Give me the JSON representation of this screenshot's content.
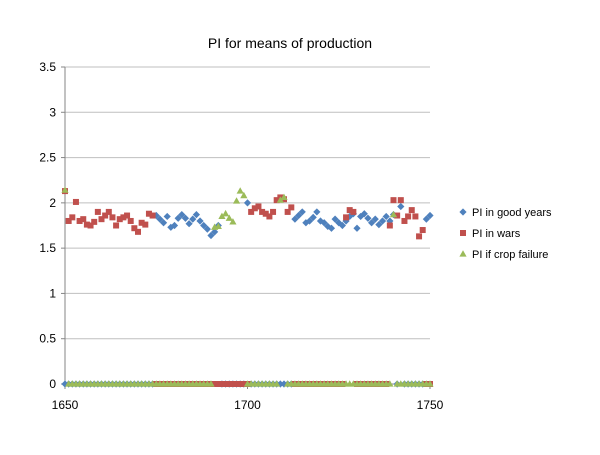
{
  "chart_data": {
    "type": "scatter",
    "title": "PI for means of production",
    "xlabel": "",
    "ylabel": "",
    "xlim": [
      1650,
      1750
    ],
    "ylim": [
      0,
      3.5
    ],
    "x_ticks": [
      "1650",
      "1700",
      "1750"
    ],
    "y_ticks": [
      "0",
      "0.5",
      "1",
      "1.5",
      "2",
      "2.5",
      "3",
      "3.5"
    ],
    "grid": "horizontal",
    "legend_position": "right",
    "series": [
      {
        "name": "PI in good years",
        "color": "#4F81BD",
        "marker": "diamond",
        "x": [
          1650,
          1651,
          1652,
          1653,
          1654,
          1655,
          1656,
          1657,
          1658,
          1659,
          1660,
          1661,
          1662,
          1663,
          1664,
          1665,
          1666,
          1667,
          1668,
          1669,
          1670,
          1671,
          1672,
          1673,
          1674,
          1675,
          1676,
          1677,
          1678,
          1679,
          1680,
          1681,
          1682,
          1683,
          1684,
          1685,
          1686,
          1687,
          1688,
          1689,
          1690,
          1691,
          1692,
          1693,
          1694,
          1695,
          1696,
          1697,
          1698,
          1699,
          1700,
          1701,
          1702,
          1703,
          1704,
          1705,
          1706,
          1707,
          1708,
          1709,
          1710,
          1711,
          1712,
          1713,
          1714,
          1715,
          1716,
          1717,
          1718,
          1719,
          1720,
          1721,
          1722,
          1723,
          1724,
          1725,
          1726,
          1727,
          1728,
          1729,
          1730,
          1731,
          1732,
          1733,
          1734,
          1735,
          1736,
          1737,
          1738,
          1739,
          1740,
          1741,
          1742,
          1743,
          1744,
          1745,
          1746,
          1747,
          1748,
          1749,
          1750
        ],
        "y": [
          0,
          0,
          0,
          0,
          0,
          0,
          0,
          0,
          0,
          0,
          0,
          0,
          0,
          0,
          0,
          0,
          0,
          0,
          0,
          0,
          0,
          0,
          0,
          0,
          0,
          1.86,
          1.82,
          1.78,
          1.85,
          1.73,
          1.75,
          1.83,
          1.87,
          1.83,
          1.77,
          1.82,
          1.87,
          1.8,
          1.75,
          1.71,
          1.64,
          1.68,
          1.75,
          0,
          0,
          0,
          0,
          0,
          0,
          0,
          2.0,
          0,
          0,
          0,
          0,
          0,
          0,
          0,
          0,
          0,
          0,
          0,
          0,
          1.82,
          1.86,
          1.9,
          1.78,
          1.8,
          1.84,
          1.9,
          1.8,
          1.78,
          1.74,
          1.72,
          1.82,
          1.78,
          1.75,
          1.8,
          1.85,
          1.88,
          1.72,
          1.85,
          1.88,
          1.83,
          1.78,
          1.82,
          1.76,
          1.8,
          1.85,
          1.8,
          1.87,
          0,
          1.96,
          0,
          0,
          0,
          0,
          0,
          0,
          1.82,
          1.86
        ]
      },
      {
        "name": "PI in wars",
        "color": "#C0504D",
        "marker": "square",
        "x": [
          1650,
          1651,
          1652,
          1653,
          1654,
          1655,
          1656,
          1657,
          1658,
          1659,
          1660,
          1661,
          1662,
          1663,
          1664,
          1665,
          1666,
          1667,
          1668,
          1669,
          1670,
          1671,
          1672,
          1673,
          1674,
          1675,
          1676,
          1677,
          1678,
          1679,
          1680,
          1681,
          1682,
          1683,
          1684,
          1685,
          1686,
          1687,
          1688,
          1689,
          1690,
          1691,
          1692,
          1693,
          1694,
          1695,
          1696,
          1697,
          1698,
          1699,
          1700,
          1701,
          1702,
          1703,
          1704,
          1705,
          1706,
          1707,
          1708,
          1709,
          1710,
          1711,
          1712,
          1713,
          1714,
          1715,
          1716,
          1717,
          1718,
          1719,
          1720,
          1721,
          1722,
          1723,
          1724,
          1725,
          1726,
          1727,
          1728,
          1729,
          1730,
          1731,
          1732,
          1733,
          1734,
          1735,
          1736,
          1737,
          1738,
          1739,
          1740,
          1741,
          1742,
          1743,
          1744,
          1745,
          1746,
          1747,
          1748,
          1749,
          1750
        ],
        "y": [
          2.13,
          1.8,
          1.84,
          2.01,
          1.8,
          1.82,
          1.76,
          1.75,
          1.79,
          1.9,
          1.82,
          1.86,
          1.9,
          1.84,
          1.75,
          1.82,
          1.84,
          1.86,
          1.8,
          1.72,
          1.68,
          1.78,
          1.76,
          1.88,
          1.86,
          0,
          0,
          0,
          0,
          0,
          0,
          0,
          0,
          0,
          0,
          0,
          0,
          0,
          0,
          0,
          0,
          0,
          0,
          0,
          0,
          0,
          0,
          0,
          0,
          0,
          0,
          1.9,
          1.94,
          1.96,
          1.9,
          1.88,
          1.85,
          1.9,
          2.03,
          2.06,
          2.04,
          1.9,
          1.95,
          0,
          0,
          0,
          0,
          0,
          0,
          0,
          0,
          0,
          0,
          0,
          0,
          0,
          0,
          1.84,
          1.92,
          1.9,
          0,
          0,
          0,
          0,
          0,
          0,
          0,
          0,
          0,
          1.75,
          2.03,
          1.86,
          2.03,
          1.8,
          1.85,
          1.92,
          1.85,
          1.63,
          1.7,
          0,
          0
        ]
      },
      {
        "name": "PI if crop failure",
        "color": "#9BBB59",
        "marker": "triangle",
        "x": [
          1650,
          1651,
          1652,
          1653,
          1654,
          1655,
          1656,
          1657,
          1658,
          1659,
          1660,
          1661,
          1662,
          1663,
          1664,
          1665,
          1666,
          1667,
          1668,
          1669,
          1670,
          1671,
          1672,
          1673,
          1674,
          1675,
          1676,
          1677,
          1678,
          1679,
          1680,
          1681,
          1682,
          1683,
          1684,
          1685,
          1686,
          1687,
          1688,
          1689,
          1690,
          1691,
          1692,
          1693,
          1694,
          1695,
          1696,
          1697,
          1698,
          1699,
          1700,
          1701,
          1702,
          1703,
          1704,
          1705,
          1706,
          1707,
          1708,
          1709,
          1710,
          1711,
          1712,
          1713,
          1714,
          1715,
          1716,
          1717,
          1718,
          1719,
          1720,
          1721,
          1722,
          1723,
          1724,
          1725,
          1726,
          1727,
          1728,
          1729,
          1730,
          1731,
          1732,
          1733,
          1734,
          1735,
          1736,
          1737,
          1738,
          1739,
          1740,
          1741,
          1742,
          1743,
          1744,
          1745,
          1746,
          1747,
          1748,
          1749,
          1750
        ],
        "y": [
          2.14,
          0,
          0,
          0,
          0,
          0,
          0,
          0,
          0,
          0,
          0,
          0,
          0,
          0,
          0,
          0,
          0,
          0,
          0,
          0,
          0,
          0,
          0,
          0,
          0,
          0,
          0,
          0,
          0,
          0,
          0,
          0,
          0,
          0,
          0,
          0,
          0,
          0,
          0,
          0,
          0,
          1.73,
          1.74,
          1.85,
          1.88,
          1.83,
          1.79,
          2.02,
          2.13,
          2.08,
          0,
          0,
          0,
          0,
          0,
          0,
          0,
          0,
          0,
          2.03,
          2.06,
          0,
          0,
          0,
          0,
          0,
          0,
          0,
          0,
          0,
          0,
          0,
          0,
          0,
          0,
          0,
          0,
          0,
          0,
          0,
          0,
          0,
          0,
          0,
          0,
          0,
          0,
          0,
          0,
          0,
          1.87,
          0,
          0,
          0,
          0,
          0,
          0,
          0,
          0,
          0,
          0
        ]
      }
    ]
  }
}
